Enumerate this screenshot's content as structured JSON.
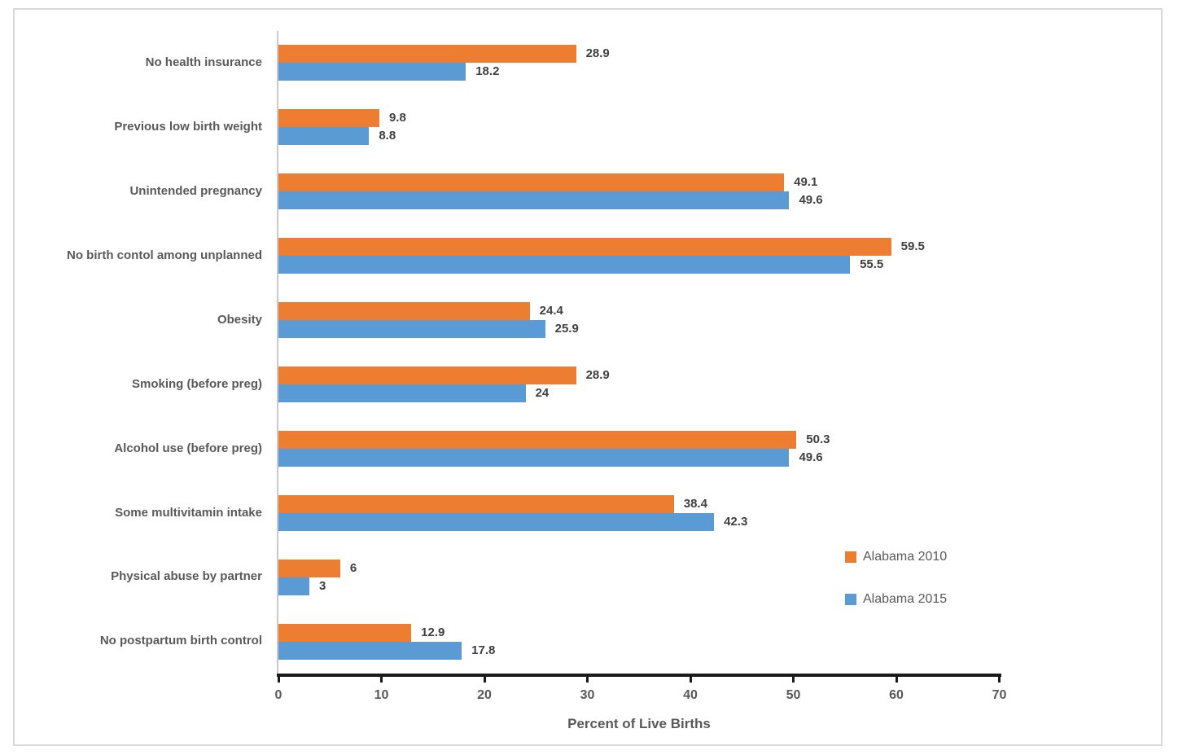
{
  "chart_data": {
    "type": "bar",
    "orientation": "horizontal",
    "title": "",
    "xlabel": "Percent of Live Births",
    "ylabel": "",
    "xlim": [
      0,
      70
    ],
    "x_ticks": [
      0,
      10,
      20,
      30,
      40,
      50,
      60,
      70
    ],
    "grid": false,
    "legend_position": "right-lower-inside",
    "categories": [
      "No health insurance",
      "Previous low birth weight",
      "Unintended pregnancy",
      "No birth contol among unplanned",
      "Obesity",
      "Smoking (before preg)",
      "Alcohol use (before preg)",
      "Some multivitamin intake",
      "Physical abuse by partner",
      "No postpartum birth control"
    ],
    "series": [
      {
        "name": "Alabama 2010",
        "color": "#ED7D31",
        "values": [
          28.9,
          9.8,
          49.1,
          59.5,
          24.4,
          28.9,
          50.3,
          38.4,
          6,
          12.9
        ]
      },
      {
        "name": "Alabama 2015",
        "color": "#5B9BD5",
        "values": [
          18.2,
          8.8,
          49.6,
          55.5,
          25.9,
          24,
          49.6,
          42.3,
          3,
          17.8
        ]
      }
    ],
    "colors": {
      "axis_line": "#1a1a1a",
      "gridline_vertical": "#C9C9C9",
      "frame_border": "#D9D9D9",
      "tick_text": "#595959",
      "category_text": "#595959",
      "data_label_text": "#404040"
    }
  }
}
